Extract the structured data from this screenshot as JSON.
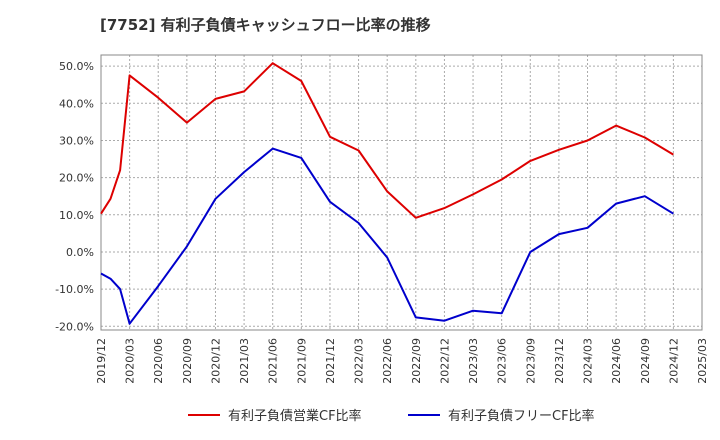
{
  "chart_data": {
    "type": "line",
    "title": "[7752]  有利子負債キャッシュフロー比率の推移",
    "x_ticks": [
      "2019/12",
      "2020/03",
      "2020/06",
      "2020/09",
      "2020/12",
      "2021/03",
      "2021/06",
      "2021/09",
      "2021/12",
      "2022/03",
      "2022/06",
      "2022/09",
      "2022/12",
      "2023/03",
      "2023/06",
      "2023/09",
      "2023/12",
      "2024/03",
      "2024/06",
      "2024/09",
      "2024/12",
      "2025/03"
    ],
    "y_ticks": [
      "50.0%",
      "40.0%",
      "30.0%",
      "20.0%",
      "10.0%",
      "0.0%",
      "-10.0%",
      "-20.0%"
    ],
    "ylim": [
      -21,
      53
    ],
    "xlim": [
      "2019/12",
      "2025/03"
    ],
    "grid": true,
    "legend_position": "bottom",
    "series": [
      {
        "name": "有利子負債営業CF比率",
        "color": "#dd0000",
        "points": [
          [
            "2019/12",
            10.3
          ],
          [
            "2020/01",
            14.3
          ],
          [
            "2020/02",
            22.0
          ],
          [
            "2020/03",
            47.5
          ],
          [
            "2020/06",
            41.5
          ],
          [
            "2020/09",
            34.8
          ],
          [
            "2020/12",
            41.2
          ],
          [
            "2021/03",
            43.2
          ],
          [
            "2021/06",
            50.8
          ],
          [
            "2021/09",
            46.0
          ],
          [
            "2021/12",
            31.0
          ],
          [
            "2022/03",
            27.3
          ],
          [
            "2022/06",
            16.3
          ],
          [
            "2022/09",
            9.2
          ],
          [
            "2022/12",
            11.8
          ],
          [
            "2023/03",
            15.5
          ],
          [
            "2023/06",
            19.5
          ],
          [
            "2023/09",
            24.5
          ],
          [
            "2023/12",
            27.5
          ],
          [
            "2024/03",
            30.0
          ],
          [
            "2024/06",
            34.0
          ],
          [
            "2024/09",
            30.8
          ],
          [
            "2024/12",
            26.2
          ]
        ]
      },
      {
        "name": "有利子負債フリーCF比率",
        "color": "#0000cc",
        "points": [
          [
            "2019/12",
            -5.8
          ],
          [
            "2020/01",
            -7.2
          ],
          [
            "2020/02",
            -10.0
          ],
          [
            "2020/03",
            -19.3
          ],
          [
            "2020/06",
            -9.2
          ],
          [
            "2020/09",
            1.5
          ],
          [
            "2020/12",
            14.3
          ],
          [
            "2021/03",
            21.5
          ],
          [
            "2021/06",
            27.8
          ],
          [
            "2021/09",
            25.3
          ],
          [
            "2021/12",
            13.5
          ],
          [
            "2022/03",
            7.8
          ],
          [
            "2022/06",
            -1.5
          ],
          [
            "2022/09",
            -17.6
          ],
          [
            "2022/12",
            -18.5
          ],
          [
            "2023/03",
            -15.8
          ],
          [
            "2023/06",
            -16.5
          ],
          [
            "2023/09",
            0.0
          ],
          [
            "2023/12",
            4.8
          ],
          [
            "2024/03",
            6.5
          ],
          [
            "2024/06",
            13.0
          ],
          [
            "2024/09",
            15.0
          ],
          [
            "2024/12",
            10.3
          ]
        ]
      }
    ]
  }
}
